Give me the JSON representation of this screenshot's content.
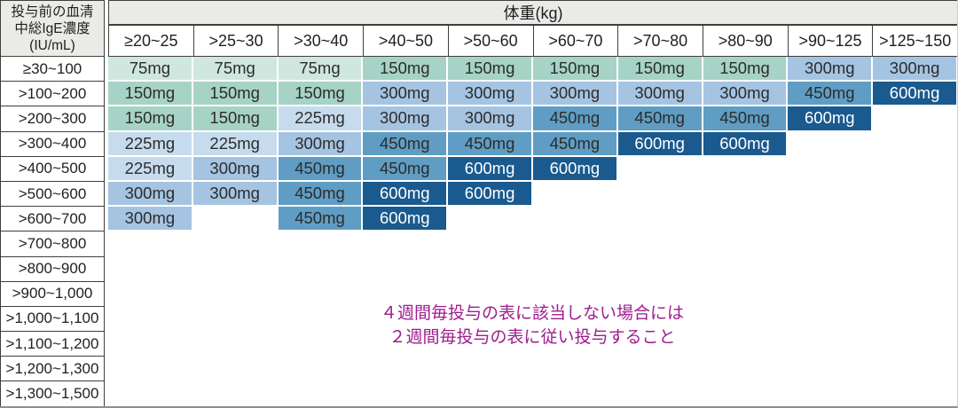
{
  "table": {
    "corner_header_lines": [
      "投与前の血清",
      "中総IgE濃度",
      "(IU/mL)"
    ],
    "weight_header": "体重(kg)",
    "weight_columns": [
      "≥20~25",
      ">25~30",
      ">30~40",
      ">40~50",
      ">50~60",
      ">60~70",
      ">70~80",
      ">80~90",
      ">90~125",
      ">125~150"
    ],
    "ige_rows": [
      "≥30~100",
      ">100~200",
      ">200~300",
      ">300~400",
      ">400~500",
      ">500~600",
      ">600~700",
      ">700~800",
      ">800~900",
      ">900~1,000",
      ">1,000~1,100",
      ">1,100~1,200",
      ">1,200~1,300",
      ">1,300~1,500"
    ],
    "doses": [
      [
        "75mg",
        "75mg",
        "75mg",
        "150mg",
        "150mg",
        "150mg",
        "150mg",
        "150mg",
        "300mg",
        "300mg"
      ],
      [
        "150mg",
        "150mg",
        "150mg",
        "300mg",
        "300mg",
        "300mg",
        "300mg",
        "300mg",
        "450mg",
        "600mg"
      ],
      [
        "150mg",
        "150mg",
        "225mg",
        "300mg",
        "300mg",
        "450mg",
        "450mg",
        "450mg",
        "600mg",
        ""
      ],
      [
        "225mg",
        "225mg",
        "300mg",
        "450mg",
        "450mg",
        "450mg",
        "600mg",
        "600mg",
        "",
        ""
      ],
      [
        "225mg",
        "300mg",
        "450mg",
        "450mg",
        "600mg",
        "600mg",
        "",
        "",
        "",
        ""
      ],
      [
        "300mg",
        "300mg",
        "450mg",
        "600mg",
        "600mg",
        "",
        "",
        "",
        "",
        ""
      ],
      [
        "300mg",
        "",
        "450mg",
        "600mg",
        "",
        "",
        "",
        "",
        "",
        ""
      ],
      [
        "",
        "",
        "",
        "",
        "",
        "",
        "",
        "",
        "",
        ""
      ],
      [
        "",
        "",
        "",
        "",
        "",
        "",
        "",
        "",
        "",
        ""
      ],
      [
        "",
        "",
        "",
        "",
        "",
        "",
        "",
        "",
        "",
        ""
      ],
      [
        "",
        "",
        "",
        "",
        "",
        "",
        "",
        "",
        "",
        ""
      ],
      [
        "",
        "",
        "",
        "",
        "",
        "",
        "",
        "",
        "",
        ""
      ],
      [
        "",
        "",
        "",
        "",
        "",
        "",
        "",
        "",
        "",
        ""
      ],
      [
        "",
        "",
        "",
        "",
        "",
        "",
        "",
        "",
        "",
        ""
      ]
    ],
    "dose_colors": {
      "75mg": "#cfe7de",
      "150mg": "#a6d3c5",
      "225mg": "#c6dcee",
      "300mg": "#a5c4e2",
      "450mg": "#5f9dc4",
      "600mg": "#1a5a8e"
    },
    "dose_white_text": [
      "600mg"
    ],
    "header_bg": "#eaeae7",
    "border_color": "#3f3f3f"
  },
  "note": {
    "lines": [
      "４週間毎投与の表に該当しない場合には",
      "２週間毎投与の表に従い投与すること"
    ],
    "color": "#9e1d8e"
  },
  "chart_data": {
    "type": "table",
    "title": "体重(kg) × 投与前の血清中総IgE濃度(IU/mL) 用量表",
    "columns": [
      "≥20~25",
      ">25~30",
      ">30~40",
      ">40~50",
      ">50~60",
      ">60~70",
      ">70~80",
      ">80~90",
      ">90~125",
      ">125~150"
    ],
    "rows": [
      "≥30~100",
      ">100~200",
      ">200~300",
      ">300~400",
      ">400~500",
      ">500~600",
      ">600~700",
      ">700~800",
      ">800~900",
      ">900~1,000",
      ">1,000~1,100",
      ">1,100~1,200",
      ">1,200~1,300",
      ">1,300~1,500"
    ],
    "values_mg": [
      [
        75,
        75,
        75,
        150,
        150,
        150,
        150,
        150,
        300,
        300
      ],
      [
        150,
        150,
        150,
        300,
        300,
        300,
        300,
        300,
        450,
        600
      ],
      [
        150,
        150,
        225,
        300,
        300,
        450,
        450,
        450,
        600,
        null
      ],
      [
        225,
        225,
        300,
        450,
        450,
        450,
        600,
        600,
        null,
        null
      ],
      [
        225,
        300,
        450,
        450,
        600,
        600,
        null,
        null,
        null,
        null
      ],
      [
        300,
        300,
        450,
        600,
        600,
        null,
        null,
        null,
        null,
        null
      ],
      [
        300,
        null,
        450,
        600,
        null,
        null,
        null,
        null,
        null,
        null
      ],
      [
        null,
        null,
        null,
        null,
        null,
        null,
        null,
        null,
        null,
        null
      ],
      [
        null,
        null,
        null,
        null,
        null,
        null,
        null,
        null,
        null,
        null
      ],
      [
        null,
        null,
        null,
        null,
        null,
        null,
        null,
        null,
        null,
        null
      ],
      [
        null,
        null,
        null,
        null,
        null,
        null,
        null,
        null,
        null,
        null
      ],
      [
        null,
        null,
        null,
        null,
        null,
        null,
        null,
        null,
        null,
        null
      ],
      [
        null,
        null,
        null,
        null,
        null,
        null,
        null,
        null,
        null,
        null
      ],
      [
        null,
        null,
        null,
        null,
        null,
        null,
        null,
        null,
        null,
        null
      ]
    ]
  }
}
